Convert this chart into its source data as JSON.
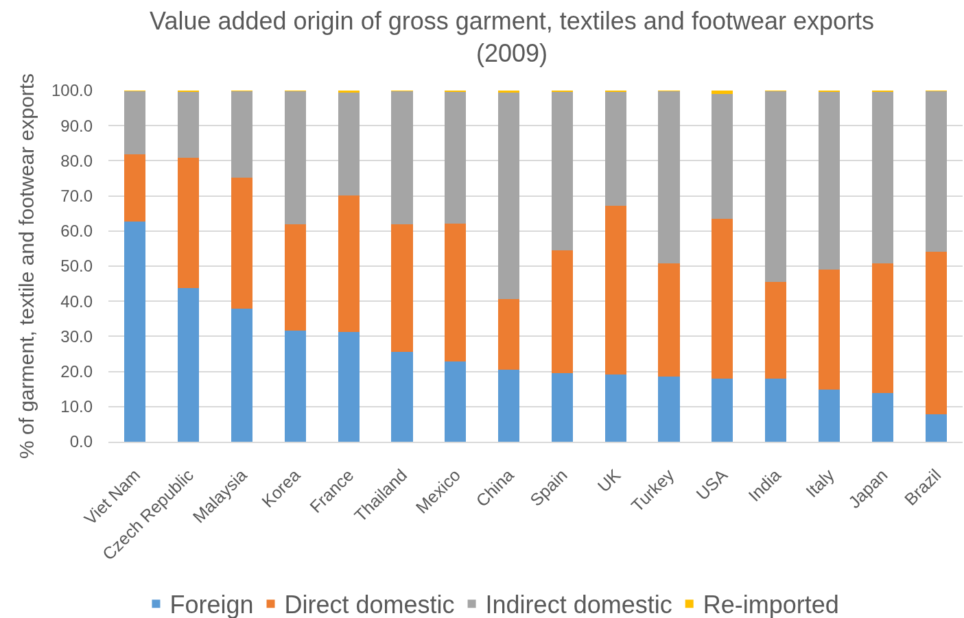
{
  "chart_data": {
    "type": "bar",
    "title": "Value added origin of gross garment, textiles and footwear exports\n(2009)",
    "ylabel": "% of garment, textile and footwear exports",
    "categories": [
      "Viet Nam",
      "Czech Republic",
      "Malaysia",
      "Korea",
      "France",
      "Thailand",
      "Mexico",
      "China",
      "Spain",
      "UK",
      "Turkey",
      "USA",
      "India",
      "Italy",
      "Japan",
      "Brazil"
    ],
    "series": [
      {
        "name": "Foreign",
        "color": "#5b9bd5",
        "values": [
          62.6,
          43.7,
          37.8,
          31.7,
          31.2,
          25.6,
          22.8,
          20.6,
          19.6,
          19.1,
          18.6,
          17.9,
          17.9,
          14.8,
          13.8,
          7.8
        ]
      },
      {
        "name": "Direct domestic",
        "color": "#ed7d31",
        "values": [
          19.3,
          37.1,
          37.4,
          30.3,
          39.0,
          36.4,
          39.3,
          20.1,
          34.8,
          48.0,
          32.1,
          45.5,
          27.7,
          34.3,
          36.9,
          46.4
        ]
      },
      {
        "name": "Indirect domestic",
        "color": "#a5a5a5",
        "values": [
          18.0,
          19.0,
          24.7,
          37.9,
          29.3,
          37.9,
          37.7,
          58.8,
          45.4,
          32.7,
          49.2,
          35.6,
          54.3,
          50.7,
          49.1,
          45.7
        ]
      },
      {
        "name": "Re-imported",
        "color": "#ffc000",
        "values": [
          0.1,
          0.2,
          0.1,
          0.1,
          0.5,
          0.1,
          0.2,
          0.5,
          0.2,
          0.2,
          0.1,
          1.0,
          0.1,
          0.2,
          0.2,
          0.1
        ]
      }
    ],
    "stacked": true,
    "ylim": [
      0,
      100
    ],
    "yticks": [
      {
        "value": 0,
        "label": "0.0"
      },
      {
        "value": 10,
        "label": "10.0"
      },
      {
        "value": 20,
        "label": "20.0"
      },
      {
        "value": 30,
        "label": "30.0"
      },
      {
        "value": 40,
        "label": "40.0"
      },
      {
        "value": 50,
        "label": "50.0"
      },
      {
        "value": 60,
        "label": "60.0"
      },
      {
        "value": 70,
        "label": "70.0"
      },
      {
        "value": 80,
        "label": "80.0"
      },
      {
        "value": 90,
        "label": "90.0"
      },
      {
        "value": 100,
        "label": "100.0"
      }
    ],
    "grid": "y",
    "legend": "bottom"
  }
}
